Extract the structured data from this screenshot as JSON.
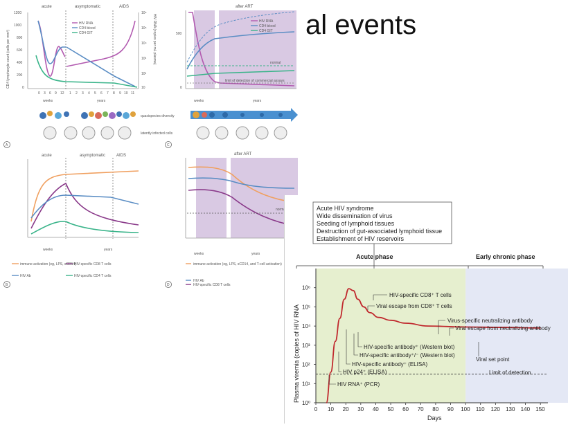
{
  "slide": {
    "title_fragment": "al events"
  },
  "figA": {
    "phases": [
      "acute",
      "asymptomatic",
      "AIDS"
    ],
    "left_ylabel": "CD4 lymphocyte count (cells per mm³)",
    "right_ylabel": "HIV RNA (copies per mL plasma)",
    "left_ticks": [
      "1200",
      "1000",
      "800",
      "600",
      "400",
      "200",
      "0"
    ],
    "right_ticks": [
      "10⁶",
      "10⁵",
      "10⁴",
      "10³",
      "10²",
      "10"
    ],
    "legend": [
      "HIV RNA",
      "CD4 blood",
      "CD4 GIT"
    ],
    "x_weeks_ticks": [
      "0",
      "3",
      "6",
      "9",
      "12"
    ],
    "x_years_ticks": [
      "1",
      "2",
      "3",
      "4",
      "5",
      "6",
      "7",
      "8",
      "9",
      "10",
      "11"
    ],
    "x_weeks_label": "weeks",
    "x_years_label": "years",
    "diversity_label": "quasispecies diversity",
    "latent_label": "latently infected cells",
    "panel_letter": "A"
  },
  "figC": {
    "phase": "after ART",
    "legend": [
      "HIV RNA",
      "CD4 blood",
      "CD4 GIT"
    ],
    "normal_label": "normal",
    "limit_label": "limit of detection of commercial assays",
    "left_ticks": [
      "500",
      "0"
    ],
    "x_weeks_label": "weeks",
    "x_years_label": "years",
    "panel_letter": "C"
  },
  "figB": {
    "phases": [
      "acute",
      "asymptomatic",
      "AIDS"
    ],
    "legend": [
      "immune activation (eg, LPS, sCD14)",
      "HIV-specific CD8 T cells",
      "HIV Ab",
      "HIV-specific CD4 T cells"
    ],
    "x_weeks_label": "weeks",
    "x_years_label": "years",
    "panel_letter": "B"
  },
  "figD": {
    "phase": "after ART",
    "normal_label": "normal",
    "legend": [
      "immune activation (eg, LPS, sCD14, and T-cell activation)",
      "HIV Ab",
      "HIV-specific CD8 T cells"
    ],
    "x_weeks_label": "weeks",
    "x_years_label": "years",
    "panel_letter": "D"
  },
  "right_chart": {
    "box_lines": [
      "Acute HIV syndrome",
      "Wide dissemination of virus",
      "Seeding of lymphoid tissues",
      "Destruction of gut-associated lymphoid tissue",
      "Establishment of HIV reservoirs"
    ],
    "phase_acute": "Acute phase",
    "phase_chronic": "Early chronic phase",
    "ylabel": "Plasma viremia (copies of HIV RNA",
    "xlabel": "Days",
    "y_ticks": [
      "10⁰",
      "10¹",
      "10²",
      "10³",
      "10⁴",
      "10⁵",
      "10⁶"
    ],
    "x_ticks": [
      "0",
      "10",
      "20",
      "30",
      "40",
      "50",
      "60",
      "70",
      "80",
      "90",
      "100",
      "110",
      "120",
      "130",
      "140",
      "150"
    ],
    "annotations": [
      "HIV-specific CD8⁺ T cells",
      "Viral escape from CD8⁺ T cells",
      "Virus-specific neutralizing antibody",
      "Viral escape from neutralizing antibody",
      "HIV-specific antibody⁺ (Western blot)",
      "HIV-specific antibody⁺/⁻ (Western blot)",
      "Viral set point",
      "HIV-specific antibody⁺ (ELISA)",
      "HIV p24⁺ (ELISA)",
      "Limit of detection",
      "HIV RNA⁺ (PCR)"
    ]
  },
  "chart_data": {
    "type": "line",
    "title": "",
    "xlabel": "Days",
    "ylabel": "Plasma viremia (copies of HIV RNA",
    "xlim": [
      0,
      155
    ],
    "ylim_log10": [
      0,
      7
    ],
    "series": [
      {
        "x": [
          7,
          10,
          13,
          16,
          19,
          22,
          25,
          28,
          32,
          36,
          42,
          50,
          60,
          75,
          100,
          125,
          150
        ],
        "log10_y": [
          0.0,
          1.6,
          3.2,
          4.4,
          5.4,
          5.95,
          5.85,
          5.4,
          5.0,
          4.7,
          4.45,
          4.3,
          4.15,
          4.0,
          3.95,
          3.93,
          3.9
        ]
      }
    ],
    "limit_of_detection_log10": 1.5,
    "acute_phase_days": [
      0,
      100
    ],
    "early_chronic_phase_days": [
      100,
      155
    ],
    "colors": {
      "line": "#c0282d",
      "acute_bg": "#e6efcf",
      "chronic_bg": "#e4e8f5"
    }
  }
}
